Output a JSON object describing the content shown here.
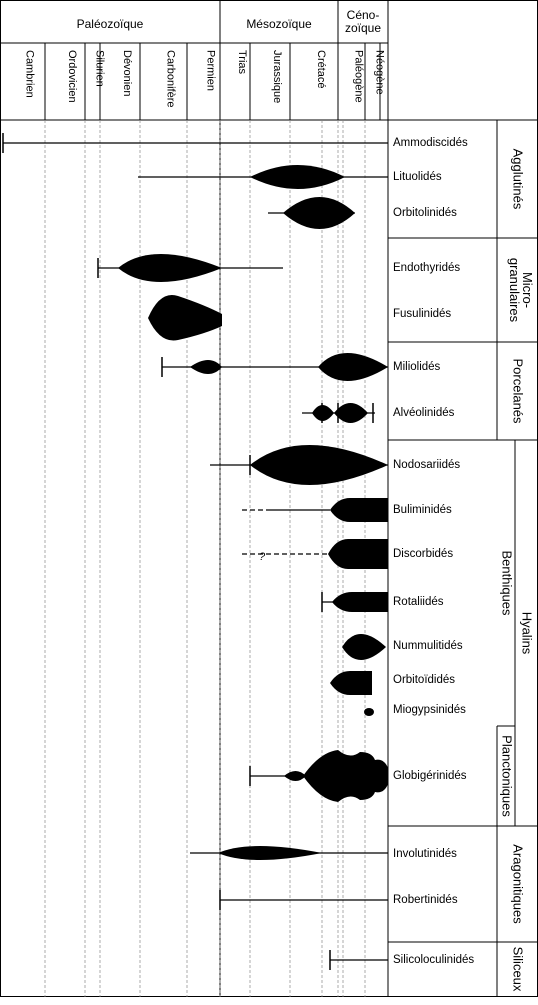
{
  "header": {
    "eras": [
      "Paléozoïque",
      "Mésozoïque",
      "Céno-\nzoïque"
    ],
    "periods": [
      "Cambrien",
      "Ordovicien",
      "Silurien",
      "Dévonien",
      "Carbonifère",
      "Permien",
      "Trias",
      "Jurassique",
      "Crétacé",
      "Paléogène",
      "Néogène"
    ]
  },
  "taxa": [
    "Ammodiscidés",
    "Lituolidés",
    "Orbitolinidés",
    "Endothyridés",
    "Fusulinidés",
    "Miliolidés",
    "Alvéolinidés",
    "Nodosariidés",
    "Buliminidés",
    "Discorbidés",
    "Rotaliidés",
    "Nummulitidés",
    "Orbitoïdidés",
    "Miogypsinidés",
    "Globigérinidés",
    "Involutinidés",
    "Robertinidés",
    "Silicoloculinidés"
  ],
  "groups": [
    "Agglutinés",
    "Micro-\ngranulaires",
    "Porcelanés",
    "Hyalins",
    "Benthiques",
    "Planctoniques",
    "Aragonitiques",
    "Siliceux"
  ],
  "annotations": {
    "question": "?"
  }
}
